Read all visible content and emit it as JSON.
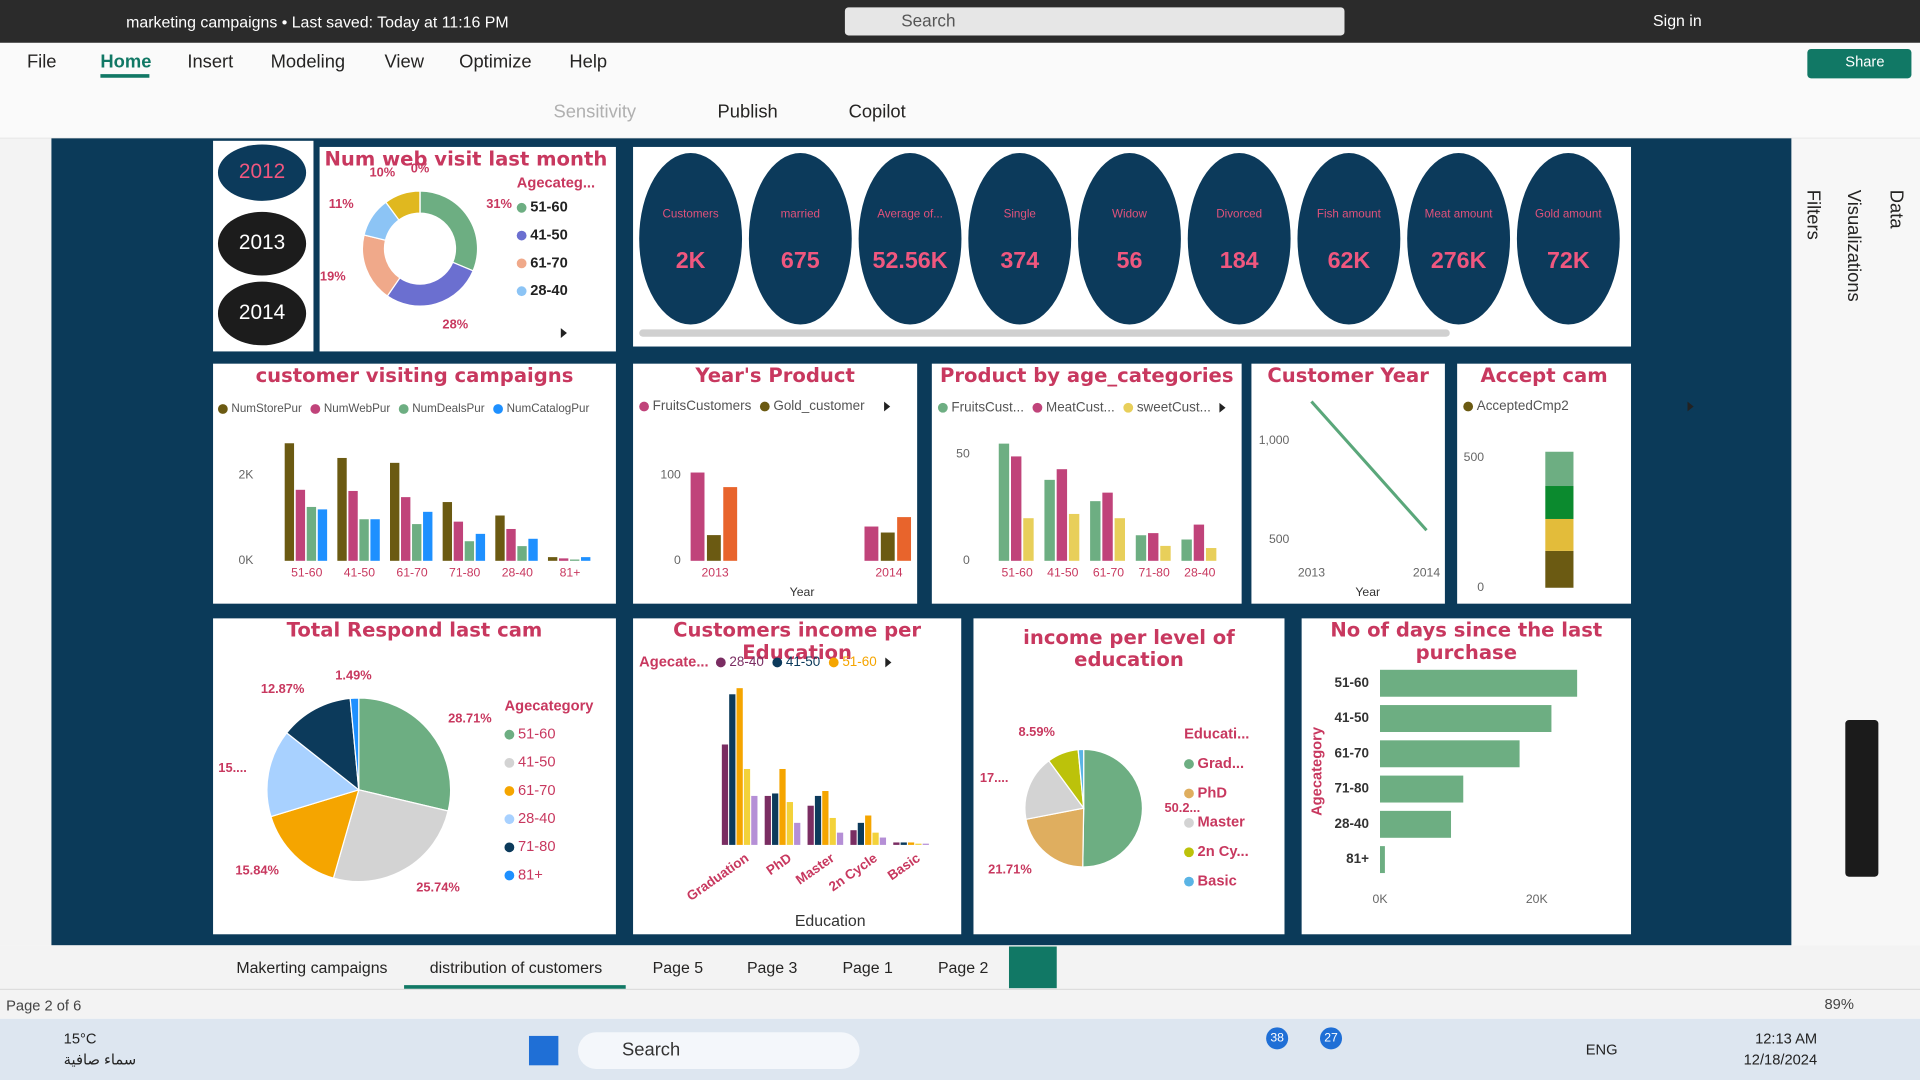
{
  "title_bar": {
    "document": "marketing campaigns • Last saved: Today at 11:16 PM",
    "search": "Search",
    "sign_in": "Sign in"
  },
  "menu": [
    "File",
    "Home",
    "Insert",
    "Modeling",
    "View",
    "Optimize",
    "Help"
  ],
  "share": "Share",
  "ribbon": [
    "Sensitivity",
    "Publish",
    "Copilot"
  ],
  "slicer": [
    "2012",
    "2013",
    "2014"
  ],
  "cards": [
    {
      "label": "Customers",
      "value": "2K"
    },
    {
      "label": "married",
      "value": "675"
    },
    {
      "label": "Average of...",
      "value": "52.56K"
    },
    {
      "label": "Single",
      "value": "374"
    },
    {
      "label": "Widow",
      "value": "56"
    },
    {
      "label": "Divorced",
      "value": "184"
    },
    {
      "label": "Fish amount",
      "value": "62K"
    },
    {
      "label": "Meat amount",
      "value": "276K"
    },
    {
      "label": "Gold amount",
      "value": "72K"
    }
  ],
  "visuals": [
    {
      "type": "donut",
      "title": "Num web visit last month",
      "legend_title": "Agecateg...",
      "categories": [
        "51-60",
        "41-50",
        "61-70",
        "28-40",
        null,
        null
      ],
      "values": [
        31,
        28,
        19,
        11,
        10,
        0
      ],
      "value_labels": [
        "31%",
        "28%",
        "19%",
        "11%",
        "10%",
        "0%"
      ],
      "colors": [
        "#6dae82",
        "#6b6fd0",
        "#f0a98a",
        "#8cc4f5",
        "#e0b81f",
        "#9a9a9a"
      ]
    },
    {
      "type": "bar",
      "title": "customer visiting campaigns",
      "categories": [
        "51-60",
        "41-50",
        "61-70",
        "71-80",
        "28-40",
        "81+"
      ],
      "series": [
        {
          "name": "NumStorePur",
          "color": "#6b5a12",
          "values": [
            2743,
            2400,
            2286,
            1371,
            1057,
            86
          ]
        },
        {
          "name": "NumWebPur",
          "color": "#c0437a",
          "values": [
            1657,
            1630,
            1486,
            914,
            743,
            57
          ]
        },
        {
          "name": "NumDealsPur",
          "color": "#6dae82",
          "values": [
            1257,
            970,
            857,
            457,
            343,
            30
          ]
        },
        {
          "name": "NumCatalogPur",
          "color": "#1e90ff",
          "values": [
            1200,
            970,
            1143,
            629,
            514,
            86
          ]
        }
      ],
      "ylim": [
        0,
        2800
      ],
      "yticks": [
        {
          "value": 0,
          "label": "0K"
        },
        {
          "value": 2000,
          "label": "2K"
        }
      ]
    },
    {
      "type": "bar",
      "title": "Year's Product",
      "categories": [
        "2013",
        "2014"
      ],
      "xlabel": "Year",
      "series": [
        {
          "name": "FruitsCustomers",
          "color": "#c0437a",
          "values": [
            103,
            40
          ]
        },
        {
          "name": "Gold_customer",
          "color": "#6b5a12",
          "values": [
            30,
            33
          ]
        },
        {
          "name": null,
          "color": "#e8642c",
          "values": [
            86,
            51
          ]
        }
      ],
      "ylim": [
        0,
        130
      ],
      "yticks": [
        0,
        100
      ]
    },
    {
      "type": "bar",
      "title": "Product by age_categories",
      "categories": [
        "51-60",
        "41-50",
        "61-70",
        "71-80",
        "28-40"
      ],
      "series": [
        {
          "name": "FruitsCust...",
          "color": "#6dae82",
          "values": [
            55,
            38,
            28,
            12,
            10
          ]
        },
        {
          "name": "MeatCust...",
          "color": "#c0437a",
          "values": [
            49,
            43,
            32,
            13,
            17
          ]
        },
        {
          "name": "sweetCust...",
          "color": "#e8cf5a",
          "values": [
            20,
            22,
            20,
            7,
            6
          ]
        }
      ],
      "ylim": [
        0,
        60
      ],
      "yticks": [
        0,
        50
      ]
    },
    {
      "type": "line",
      "title": "Customer Year",
      "categories": [
        "2013",
        "2014"
      ],
      "xlabel": "Year",
      "values": [
        1198,
        549
      ],
      "color": "#5aa77a",
      "ylim": [
        390,
        1250
      ],
      "yticks": [
        500,
        {
          "value": 1000,
          "label": "1,000"
        }
      ]
    },
    {
      "type": "stacked_bar",
      "title": "Accept cam",
      "series": [
        {
          "name": "AcceptedCmp2",
          "color": "#6b5a12",
          "values": [
            142
          ]
        },
        {
          "name": null,
          "color": "#e3bc3a",
          "values": [
            123
          ]
        },
        {
          "name": null,
          "color": "#0b8a2e",
          "values": [
            127
          ]
        },
        {
          "name": null,
          "color": "#6dae82",
          "values": [
            132
          ]
        }
      ],
      "ylim": [
        0,
        560
      ],
      "yticks": [
        0,
        500
      ]
    },
    {
      "type": "pie",
      "title": "Total Respond last cam",
      "legend_title": "Agecategory",
      "categories": [
        "51-60",
        "41-50",
        "61-70",
        "28-40",
        "71-80",
        "81+"
      ],
      "values": [
        28.71,
        25.74,
        15.84,
        15.35,
        12.87,
        1.49
      ],
      "value_labels": [
        "28.71%",
        "25.74%",
        "15.84%",
        "15....",
        "12.87%",
        "1.49%"
      ],
      "colors": [
        "#6dae82",
        "#d3d3d3",
        "#f5a500",
        "#a8d1ff",
        "#0c3a5b",
        "#1e90ff"
      ]
    },
    {
      "type": "bar",
      "title": "Customers income per Education",
      "legend_title": "Agecate...",
      "xlabel": "Education",
      "categories": [
        "Graduation",
        "PhD",
        "Master",
        "2n Cycle",
        "Basic"
      ],
      "series": [
        {
          "name": "28-40",
          "color": "#7a2d62",
          "values": [
            82,
            40,
            32,
            12,
            2
          ]
        },
        {
          "name": "41-50",
          "color": "#0c3a5b",
          "values": [
            123,
            42,
            40,
            18,
            2
          ]
        },
        {
          "name": "51-60",
          "color": "#f5a500",
          "values": [
            128,
            62,
            44,
            24,
            2
          ]
        },
        {
          "name": null,
          "color": "#f3d23a",
          "values": [
            62,
            35,
            22,
            10,
            1
          ]
        },
        {
          "name": null,
          "color": "#b58fd6",
          "values": [
            40,
            18,
            10,
            6,
            1
          ]
        }
      ],
      "ylim": [
        0,
        130
      ]
    },
    {
      "type": "pie",
      "title": "income per level of education",
      "legend_title": "Educati...",
      "categories": [
        "Grad...",
        "PhD",
        "Master",
        "2n Cy...",
        "Basic"
      ],
      "values": [
        50.25,
        21.71,
        17.95,
        8.59,
        1.5
      ],
      "value_labels": [
        "50.2...",
        "21.71%",
        "17....",
        "8.59%",
        null
      ],
      "colors": [
        "#6dae82",
        "#dfae5f",
        "#d3d3d3",
        "#bcc20a",
        "#5ab4e5"
      ]
    },
    {
      "type": "hbar",
      "title": "No of days since the last purchase",
      "ylabel": "Agecategory",
      "categories": [
        "51-60",
        "41-50",
        "61-70",
        "71-80",
        "28-40",
        "81+"
      ],
      "values": [
        25156,
        21875,
        17812,
        10625,
        9062,
        625
      ],
      "color": "#6dae82",
      "xlim": [
        0,
        30000
      ],
      "xticks": [
        {
          "value": 0,
          "label": "0K"
        },
        {
          "value": 20000,
          "label": "20K"
        }
      ]
    }
  ],
  "panes": [
    "Filters",
    "Visualizations",
    "Data"
  ],
  "pages": [
    "Makerting campaigns",
    "distribution of customers",
    "Page 5",
    "Page 3",
    "Page 1",
    "Page 2"
  ],
  "status": "Page 2 of 6",
  "zoom": "89%",
  "taskbar": {
    "temperature": "15°C",
    "weather": "سماء صافية",
    "search": "Search",
    "badges": [
      "38",
      "27"
    ],
    "language": "ENG",
    "time": "12:13 AM",
    "date": "12/18/2024"
  }
}
